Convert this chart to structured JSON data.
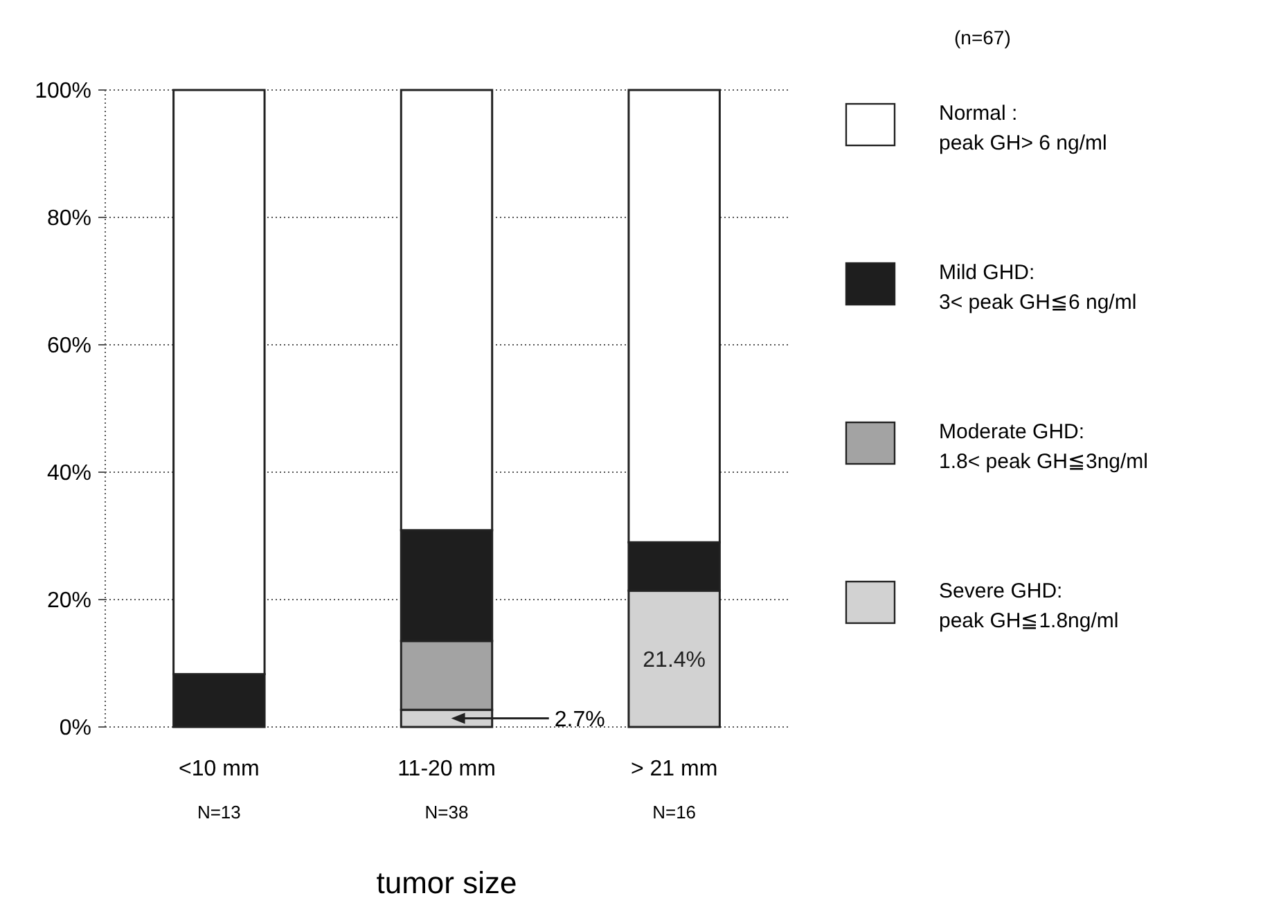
{
  "chart_data": {
    "type": "bar",
    "stacked": true,
    "xlabel": "tumor size",
    "categories": [
      "<10 mm",
      "11-20 mm",
      "> 21 mm"
    ],
    "series": [
      {
        "name": "Severe GHD:\npeak GH≦1.8ng/ml",
        "color": "#d2d2d2",
        "values": [
          0,
          2.7,
          21.4
        ],
        "value_labels": [
          null,
          "2.7%",
          "21.4%"
        ]
      },
      {
        "name": "Moderate GHD:\n1.8< peak GH≦3ng/ml",
        "color": "#a3a3a3",
        "values": [
          0,
          10.8,
          0
        ]
      },
      {
        "name": "Mild GHD:\n3< peak GH≦6 ng/ml",
        "color": "#1e1e1e",
        "values": [
          8.3,
          17.4,
          7.6
        ]
      },
      {
        "name": "Normal :\npeak GH> 6 ng/ml",
        "color": "#ffffff",
        "values": [
          91.7,
          69.1,
          71
        ]
      }
    ],
    "ylim": [
      0,
      100
    ],
    "yticks": [
      {
        "value": 0,
        "label": "0%"
      },
      {
        "value": 20,
        "label": "20%"
      },
      {
        "value": 40,
        "label": "40%"
      },
      {
        "value": 60,
        "label": "60%"
      },
      {
        "value": 80,
        "label": "80%"
      },
      {
        "value": 100,
        "label": "100%"
      }
    ],
    "grid": "y",
    "legend": "right",
    "annotations": [
      "(n=67)",
      "N=13",
      "N=38",
      "N=16"
    ]
  }
}
